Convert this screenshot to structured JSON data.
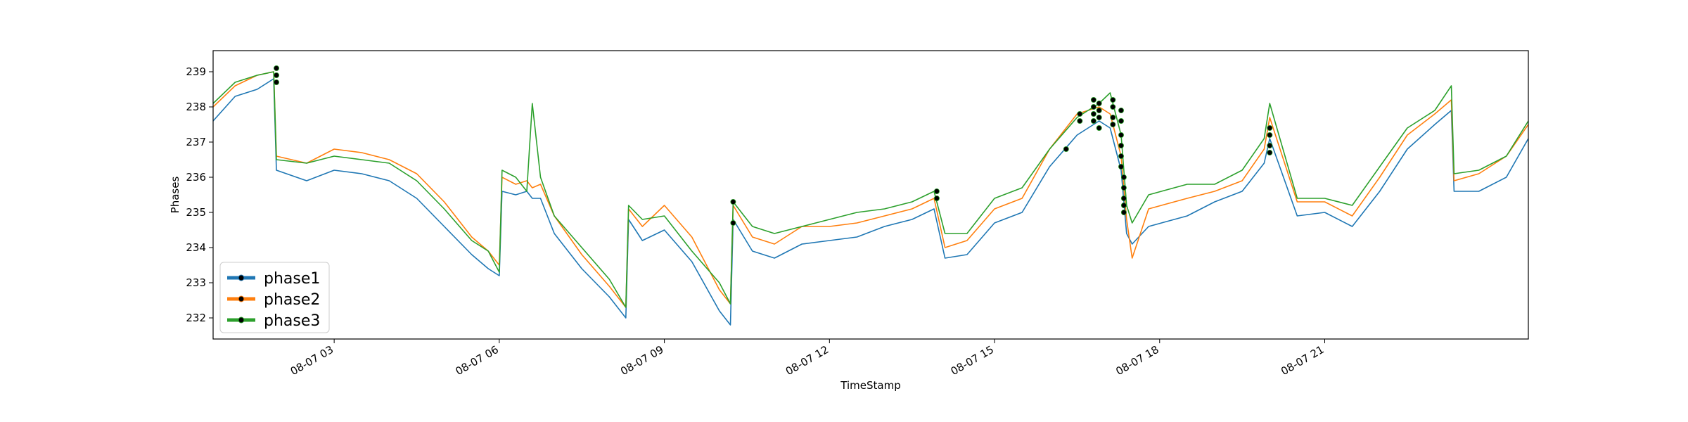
{
  "chart_data": {
    "type": "line",
    "title": "",
    "xlabel": "TimeStamp",
    "ylabel": "Phases",
    "x_ticks": [
      "08-07 03",
      "08-07 06",
      "08-07 09",
      "08-07 12",
      "08-07 15",
      "08-07 18",
      "08-07 21"
    ],
    "x_tick_hours": [
      3,
      6,
      9,
      12,
      15,
      18,
      21
    ],
    "xlim_hours": [
      0.8,
      24.7
    ],
    "y_ticks": [
      "232",
      "233",
      "234",
      "235",
      "236",
      "237",
      "238",
      "239"
    ],
    "ylim": [
      231.4,
      239.6
    ],
    "grid": false,
    "legend_position": "lower-left",
    "colors": {
      "phase1": "#1f77b4",
      "phase2": "#ff7f0e",
      "phase3": "#2ca02c",
      "marker": "#000000"
    },
    "x_hours": [
      0.8,
      1.2,
      1.6,
      1.9,
      1.95,
      2.5,
      3.0,
      3.5,
      4.0,
      4.5,
      5.0,
      5.5,
      5.8,
      6.0,
      6.05,
      6.3,
      6.5,
      6.6,
      6.75,
      7.0,
      7.5,
      8.0,
      8.3,
      8.35,
      8.6,
      9.0,
      9.5,
      10.0,
      10.2,
      10.25,
      10.6,
      11.0,
      11.5,
      12.0,
      12.5,
      13.0,
      13.5,
      13.9,
      14.1,
      14.5,
      15.0,
      15.5,
      16.0,
      16.5,
      16.9,
      17.1,
      17.3,
      17.4,
      17.5,
      17.8,
      18.5,
      19.0,
      19.5,
      19.9,
      20.0,
      20.5,
      21.0,
      21.5,
      22.0,
      22.5,
      23.0,
      23.3,
      23.35,
      23.8,
      24.3,
      24.7
    ],
    "series": [
      {
        "name": "phase1",
        "values": [
          237.6,
          238.3,
          238.5,
          238.8,
          236.2,
          235.9,
          236.2,
          236.1,
          235.9,
          235.4,
          234.6,
          233.8,
          233.4,
          233.2,
          235.6,
          235.5,
          235.6,
          235.4,
          235.4,
          234.4,
          233.4,
          232.6,
          232.0,
          234.8,
          234.2,
          234.5,
          233.6,
          232.2,
          231.8,
          234.8,
          233.9,
          233.7,
          234.1,
          234.2,
          234.3,
          234.6,
          234.8,
          235.1,
          233.7,
          233.8,
          234.7,
          235.0,
          236.3,
          237.2,
          237.6,
          237.4,
          236.2,
          234.4,
          234.1,
          234.6,
          234.9,
          235.3,
          235.6,
          236.4,
          237.1,
          234.9,
          235.0,
          234.6,
          235.6,
          236.8,
          237.5,
          237.9,
          235.6,
          235.6,
          236.0,
          237.1
        ]
      },
      {
        "name": "phase2",
        "values": [
          238.0,
          238.6,
          238.9,
          239.0,
          236.6,
          236.4,
          236.8,
          236.7,
          236.5,
          236.1,
          235.3,
          234.3,
          233.9,
          233.5,
          236.0,
          235.8,
          235.9,
          235.7,
          235.8,
          234.9,
          233.8,
          232.9,
          232.3,
          235.1,
          234.6,
          235.2,
          234.3,
          232.8,
          232.4,
          235.2,
          234.3,
          234.1,
          234.6,
          234.6,
          234.7,
          234.9,
          235.1,
          235.4,
          234.0,
          234.2,
          235.1,
          235.4,
          236.8,
          237.8,
          238.0,
          237.8,
          236.6,
          234.8,
          233.7,
          235.1,
          235.4,
          235.6,
          235.9,
          236.8,
          237.7,
          235.3,
          235.3,
          234.9,
          236.0,
          237.2,
          237.8,
          238.2,
          235.9,
          236.1,
          236.6,
          237.5
        ]
      },
      {
        "name": "phase3",
        "values": [
          238.1,
          238.7,
          238.9,
          239.0,
          236.5,
          236.4,
          236.6,
          236.5,
          236.4,
          235.9,
          235.1,
          234.2,
          233.9,
          233.3,
          236.2,
          236.0,
          235.6,
          238.1,
          236.0,
          234.9,
          234.0,
          233.1,
          232.3,
          235.2,
          234.8,
          234.9,
          233.9,
          233.0,
          232.4,
          235.3,
          234.6,
          234.4,
          234.6,
          234.8,
          235.0,
          235.1,
          235.3,
          235.6,
          234.4,
          234.4,
          235.4,
          235.7,
          236.8,
          237.7,
          238.1,
          238.4,
          237.2,
          235.2,
          234.7,
          235.5,
          235.8,
          235.8,
          236.2,
          237.1,
          238.1,
          235.4,
          235.4,
          235.2,
          236.3,
          237.4,
          237.9,
          238.6,
          236.1,
          236.2,
          236.6,
          237.6
        ]
      }
    ],
    "markers": [
      {
        "x": 1.95,
        "y": 239.1
      },
      {
        "x": 1.95,
        "y": 238.9
      },
      {
        "x": 1.95,
        "y": 238.7
      },
      {
        "x": 10.25,
        "y": 235.3
      },
      {
        "x": 10.25,
        "y": 234.7
      },
      {
        "x": 13.95,
        "y": 235.6
      },
      {
        "x": 13.95,
        "y": 235.4
      },
      {
        "x": 16.3,
        "y": 236.8
      },
      {
        "x": 16.55,
        "y": 237.8
      },
      {
        "x": 16.55,
        "y": 237.6
      },
      {
        "x": 16.8,
        "y": 238.2
      },
      {
        "x": 16.8,
        "y": 238.0
      },
      {
        "x": 16.8,
        "y": 237.8
      },
      {
        "x": 16.8,
        "y": 237.6
      },
      {
        "x": 16.9,
        "y": 238.1
      },
      {
        "x": 16.9,
        "y": 237.9
      },
      {
        "x": 16.9,
        "y": 237.7
      },
      {
        "x": 16.9,
        "y": 237.4
      },
      {
        "x": 17.15,
        "y": 238.2
      },
      {
        "x": 17.15,
        "y": 238.0
      },
      {
        "x": 17.15,
        "y": 237.7
      },
      {
        "x": 17.15,
        "y": 237.5
      },
      {
        "x": 17.3,
        "y": 237.9
      },
      {
        "x": 17.3,
        "y": 237.6
      },
      {
        "x": 17.3,
        "y": 237.2
      },
      {
        "x": 17.3,
        "y": 236.9
      },
      {
        "x": 17.3,
        "y": 236.6
      },
      {
        "x": 17.3,
        "y": 236.3
      },
      {
        "x": 17.35,
        "y": 236.0
      },
      {
        "x": 17.35,
        "y": 235.7
      },
      {
        "x": 17.35,
        "y": 235.4
      },
      {
        "x": 17.35,
        "y": 235.2
      },
      {
        "x": 17.35,
        "y": 235.0
      },
      {
        "x": 20.0,
        "y": 237.4
      },
      {
        "x": 20.0,
        "y": 237.2
      },
      {
        "x": 20.0,
        "y": 236.9
      },
      {
        "x": 20.0,
        "y": 236.7
      }
    ]
  }
}
